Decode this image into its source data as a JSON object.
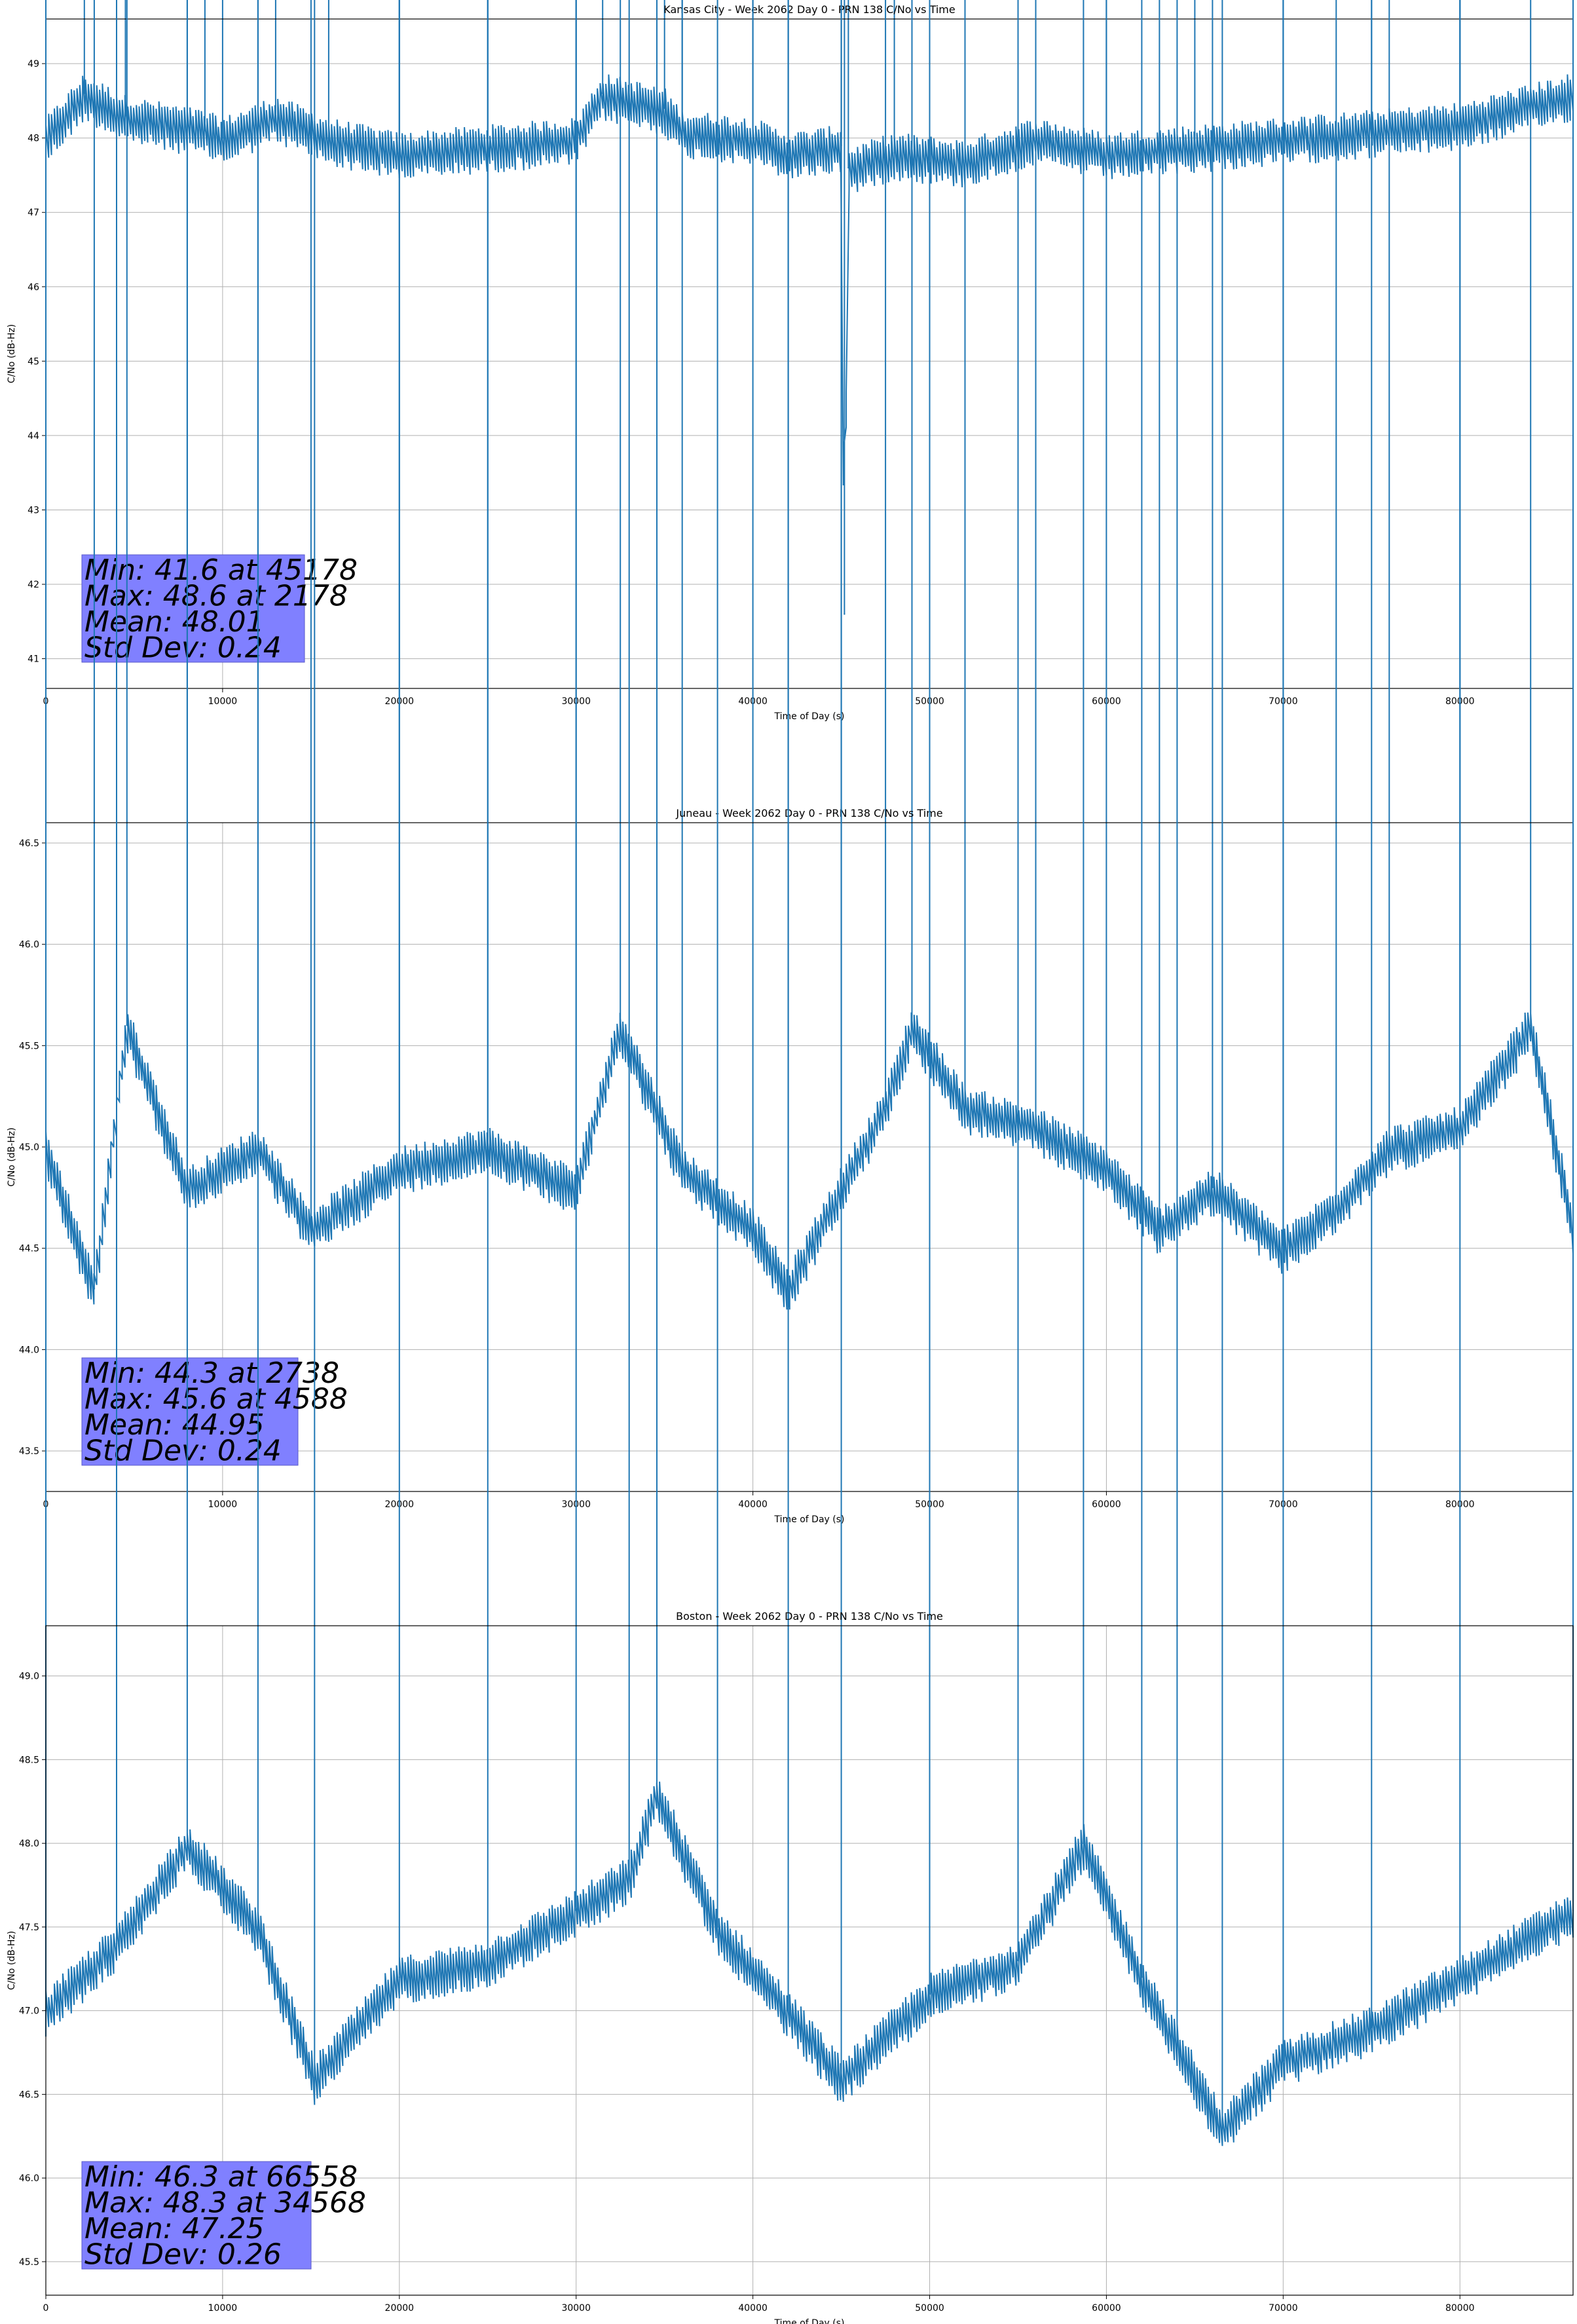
{
  "chart_data": [
    {
      "type": "line",
      "title": "Kansas City - Week 2062 Day 0 - PRN 138 C/No vs Time",
      "xlabel": "Time of Day (s)",
      "ylabel": "C/No (dB-Hz)",
      "xlim": [
        0,
        86400
      ],
      "ylim": [
        40.6,
        49.6
      ],
      "xticks": [
        0,
        10000,
        20000,
        30000,
        40000,
        50000,
        60000,
        70000,
        80000
      ],
      "xtick_labels": [
        "0",
        "10000",
        "20000",
        "30000",
        "40000",
        "50000",
        "60000",
        "70000",
        "80000"
      ],
      "yticks": [
        41,
        42,
        43,
        44,
        45,
        46,
        47,
        48,
        49
      ],
      "ytick_labels": [
        "41",
        "42",
        "43",
        "44",
        "45",
        "46",
        "47",
        "48",
        "49"
      ],
      "grid": true,
      "color": "#1f77b4",
      "stats": [
        "Min: 41.6 at 45178",
        "Max: 48.6 at 2178",
        "Mean: 48.01",
        "Std Dev: 0.24"
      ],
      "series": [
        {
          "x": [
            0,
            2178,
            4500,
            9000,
            10000,
            13000,
            16000,
            20000,
            25000,
            30000,
            31500,
            35000,
            36000,
            40000,
            42000,
            45000,
            45178,
            45400,
            48000,
            52000,
            56000,
            60000,
            65000,
            70000,
            75000,
            80000,
            86400
          ],
          "y": [
            48.0,
            48.6,
            48.3,
            48.1,
            48.0,
            48.3,
            48.0,
            47.8,
            47.9,
            48.0,
            48.6,
            48.4,
            48.1,
            48.0,
            47.8,
            47.9,
            41.6,
            47.6,
            47.8,
            47.7,
            48.0,
            47.8,
            47.9,
            48.0,
            48.1,
            48.2,
            48.6
          ]
        }
      ]
    },
    {
      "type": "line",
      "title": "Juneau - Week 2062 Day 0 - PRN 138 C/No vs Time",
      "xlabel": "Time of Day (s)",
      "ylabel": "C/No (dB-Hz)",
      "xlim": [
        0,
        86400
      ],
      "ylim": [
        43.3,
        46.6
      ],
      "xticks": [
        0,
        10000,
        20000,
        30000,
        40000,
        50000,
        60000,
        70000,
        80000
      ],
      "xtick_labels": [
        "0",
        "10000",
        "20000",
        "30000",
        "40000",
        "50000",
        "60000",
        "70000",
        "80000"
      ],
      "yticks": [
        43.5,
        44.0,
        44.5,
        45.0,
        45.5,
        46.0,
        46.5
      ],
      "ytick_labels": [
        "43.5",
        "44.0",
        "44.5",
        "45.0",
        "45.5",
        "46.0",
        "46.5"
      ],
      "grid": true,
      "color": "#1f77b4",
      "stats": [
        "Min: 44.3 at 2738",
        "Max: 45.6 at 4588",
        "Mean: 44.95",
        "Std Dev: 0.24"
      ],
      "series": [
        {
          "x": [
            0,
            2738,
            4588,
            8000,
            12000,
            15000,
            20000,
            25000,
            30000,
            32500,
            36000,
            40000,
            42000,
            45000,
            47500,
            49000,
            52000,
            56000,
            60000,
            63000,
            66000,
            70000,
            73000,
            76000,
            80000,
            84000,
            86400
          ],
          "y": [
            45.0,
            44.3,
            45.6,
            44.8,
            45.0,
            44.6,
            44.9,
            45.0,
            44.8,
            45.6,
            44.9,
            44.6,
            44.3,
            44.8,
            45.2,
            45.6,
            45.2,
            45.1,
            44.9,
            44.6,
            44.8,
            44.5,
            44.7,
            45.0,
            45.1,
            45.6,
            44.6
          ]
        }
      ]
    },
    {
      "type": "line",
      "title": "Boston - Week 2062 Day 0 - PRN 138 C/No vs Time",
      "xlabel": "Time of Day (s)",
      "ylabel": "C/No (dB-Hz)",
      "xlim": [
        0,
        86400
      ],
      "ylim": [
        45.3,
        49.3
      ],
      "xticks": [
        0,
        10000,
        20000,
        30000,
        40000,
        50000,
        60000,
        70000,
        80000
      ],
      "xtick_labels": [
        "0",
        "10000",
        "20000",
        "30000",
        "40000",
        "50000",
        "60000",
        "70000",
        "80000"
      ],
      "yticks": [
        45.5,
        46.0,
        46.5,
        47.0,
        47.5,
        48.0,
        48.5,
        49.0
      ],
      "ytick_labels": [
        "45.5",
        "46.0",
        "46.5",
        "47.0",
        "47.5",
        "48.0",
        "48.5",
        "49.0"
      ],
      "grid": true,
      "color": "#1f77b4",
      "stats": [
        "Min: 46.3 at 66558",
        "Max: 48.3 at 34568",
        "Mean: 47.25",
        "Std Dev: 0.26"
      ],
      "series": [
        {
          "x": [
            0,
            4000,
            8000,
            12000,
            15200,
            20000,
            25000,
            30000,
            33000,
            34568,
            38000,
            42000,
            45000,
            50000,
            55000,
            58700,
            62000,
            64000,
            66558,
            70000,
            75000,
            80000,
            86400
          ],
          "y": [
            47.0,
            47.4,
            48.0,
            47.5,
            46.6,
            47.2,
            47.3,
            47.6,
            47.8,
            48.3,
            47.5,
            47.0,
            46.6,
            47.1,
            47.3,
            48.0,
            47.2,
            46.8,
            46.3,
            46.7,
            46.9,
            47.2,
            47.6
          ]
        }
      ]
    }
  ]
}
